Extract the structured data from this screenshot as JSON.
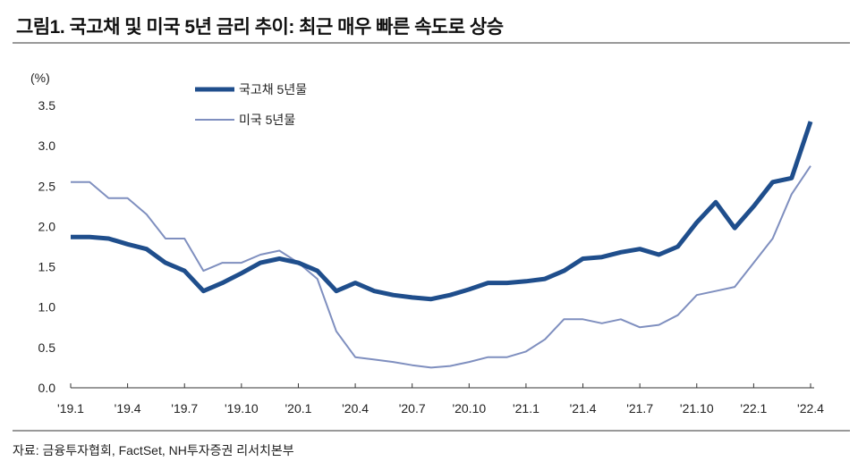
{
  "title": "그림1. 국고채 및 미국 5년 금리 추이: 최근 매우 빠른 속도로 상승",
  "source": "자료: 금융투자협회, FactSet, NH투자증권 리서치본부",
  "chart_data": {
    "type": "line",
    "title": "",
    "ylabel": "(%)",
    "ylim": [
      0,
      3.5
    ],
    "yticks": [
      "0.0",
      "0.5",
      "1.0",
      "1.5",
      "2.0",
      "2.5",
      "3.0",
      "3.5"
    ],
    "xticks": [
      "'19.1",
      "'19.4",
      "'19.7",
      "'19.10",
      "'20.1",
      "'20.4",
      "'20.7",
      "'20.10",
      "'21.1",
      "'21.4",
      "'21.7",
      "'21.10",
      "'22.1",
      "'22.4"
    ],
    "x": [
      "2019-01",
      "2019-02",
      "2019-03",
      "2019-04",
      "2019-05",
      "2019-06",
      "2019-07",
      "2019-08",
      "2019-09",
      "2019-10",
      "2019-11",
      "2019-12",
      "2020-01",
      "2020-02",
      "2020-03",
      "2020-04",
      "2020-05",
      "2020-06",
      "2020-07",
      "2020-08",
      "2020-09",
      "2020-10",
      "2020-11",
      "2020-12",
      "2021-01",
      "2021-02",
      "2021-03",
      "2021-04",
      "2021-05",
      "2021-06",
      "2021-07",
      "2021-08",
      "2021-09",
      "2021-10",
      "2021-11",
      "2021-12",
      "2022-01",
      "2022-02",
      "2022-03",
      "2022-04"
    ],
    "legend_position": "top-left",
    "series": [
      {
        "name": "국고채 5년물",
        "color": "#1f4e8c",
        "values": [
          1.87,
          1.87,
          1.85,
          1.78,
          1.72,
          1.55,
          1.45,
          1.2,
          1.3,
          1.42,
          1.55,
          1.6,
          1.55,
          1.45,
          1.2,
          1.3,
          1.2,
          1.15,
          1.12,
          1.1,
          1.15,
          1.22,
          1.3,
          1.3,
          1.32,
          1.35,
          1.45,
          1.6,
          1.62,
          1.68,
          1.72,
          1.65,
          1.75,
          2.05,
          2.3,
          1.98,
          2.25,
          2.55,
          2.6,
          3.3
        ]
      },
      {
        "name": "미국 5년물",
        "color": "#7f8fbf",
        "values": [
          2.55,
          2.55,
          2.35,
          2.35,
          2.15,
          1.85,
          1.85,
          1.45,
          1.55,
          1.55,
          1.65,
          1.7,
          1.55,
          1.35,
          0.7,
          0.38,
          0.35,
          0.32,
          0.28,
          0.25,
          0.27,
          0.32,
          0.38,
          0.38,
          0.45,
          0.6,
          0.85,
          0.85,
          0.8,
          0.85,
          0.75,
          0.78,
          0.9,
          1.15,
          1.2,
          1.25,
          1.55,
          1.85,
          2.4,
          2.75
        ]
      }
    ]
  }
}
